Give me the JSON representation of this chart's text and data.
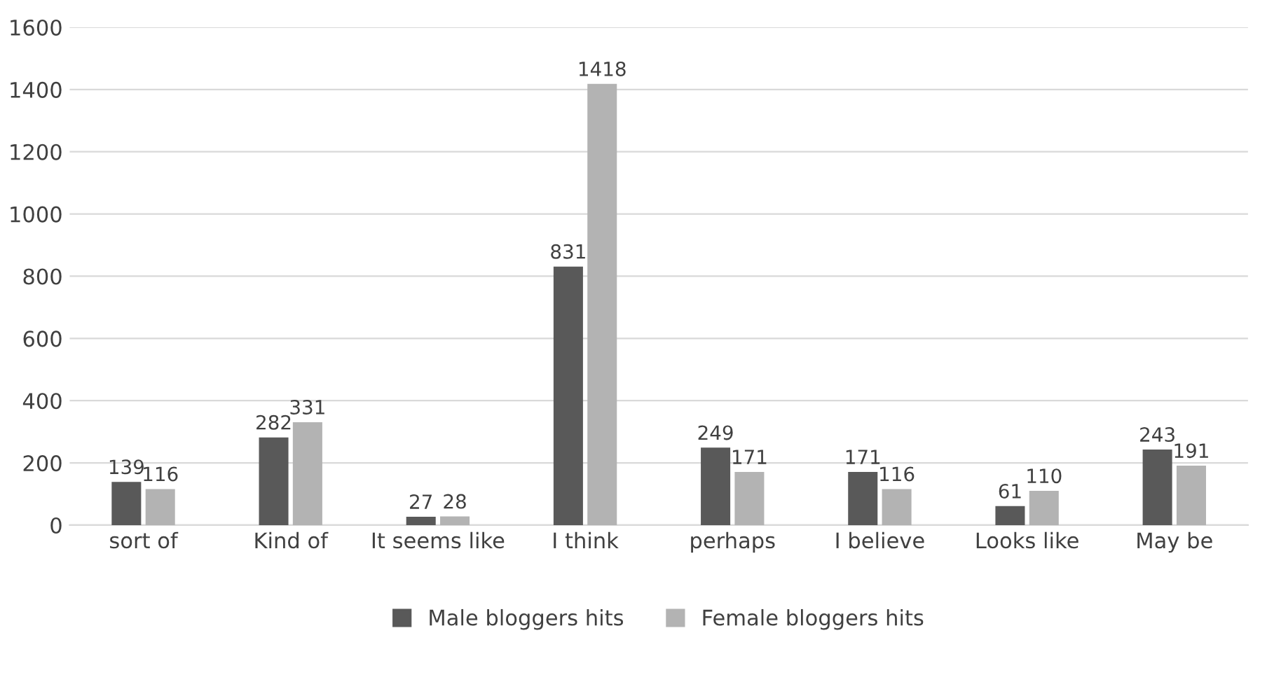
{
  "chart_data": {
    "type": "bar",
    "categories": [
      "sort of",
      "Kind of",
      "It seems like",
      "I think",
      "perhaps",
      "I believe",
      "Looks like",
      "May be"
    ],
    "series": [
      {
        "name": "Male bloggers hits",
        "color": "#595959",
        "values": [
          139,
          282,
          27,
          831,
          249,
          171,
          61,
          243
        ]
      },
      {
        "name": "Female bloggers hits",
        "color": "#b3b3b3",
        "values": [
          116,
          331,
          28,
          1418,
          171,
          116,
          110,
          191
        ]
      }
    ],
    "ylim": [
      0,
      1600
    ],
    "yticks": [
      0,
      200,
      400,
      600,
      800,
      1000,
      1200,
      1400,
      1600
    ],
    "grid": "y",
    "legend": "bottom",
    "data_labels": true
  }
}
